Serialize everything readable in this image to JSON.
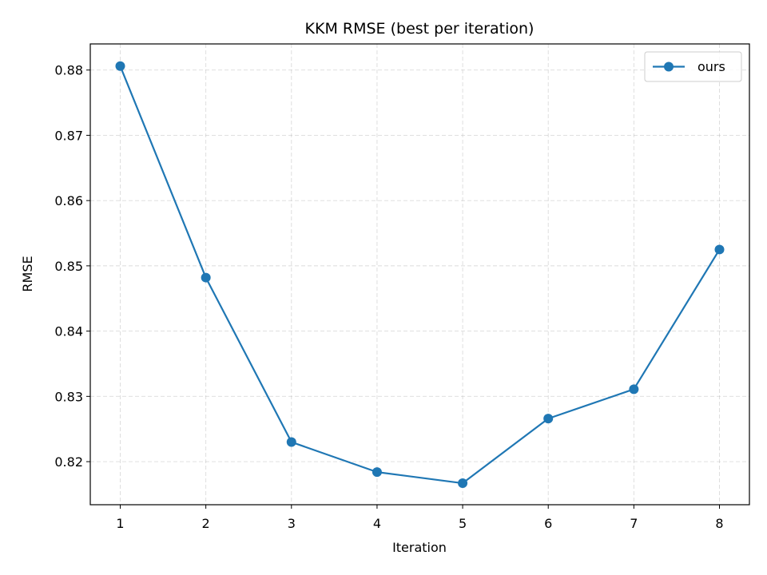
{
  "chart_data": {
    "type": "line",
    "title": "KKM RMSE (best per iteration)",
    "xlabel": "Iteration",
    "ylabel": "RMSE",
    "x": [
      1,
      2,
      3,
      4,
      5,
      6,
      7,
      8
    ],
    "x_ticks": [
      "1",
      "2",
      "3",
      "4",
      "5",
      "6",
      "7",
      "8"
    ],
    "y_ticks": [
      "0.82",
      "0.83",
      "0.84",
      "0.85",
      "0.86",
      "0.87",
      "0.88"
    ],
    "y_tick_values": [
      0.82,
      0.83,
      0.84,
      0.85,
      0.86,
      0.87,
      0.88
    ],
    "xlim": [
      0.65,
      8.35
    ],
    "ylim": [
      0.8134,
      0.884
    ],
    "grid": true,
    "legend_position": "top-right",
    "series": [
      {
        "name": "ours",
        "color": "#1f77b4",
        "marker": "circle",
        "values": [
          0.8806,
          0.8482,
          0.823,
          0.8184,
          0.8167,
          0.8266,
          0.8311,
          0.8525
        ]
      }
    ]
  }
}
